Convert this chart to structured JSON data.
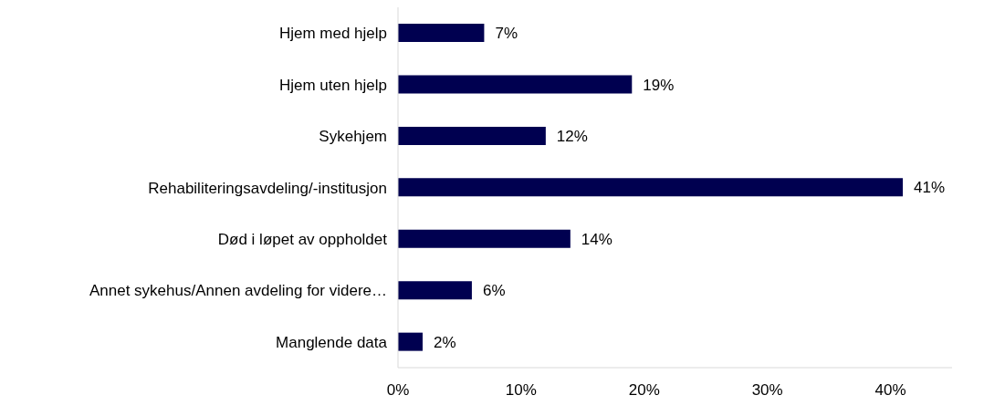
{
  "chart_data": {
    "type": "bar",
    "orientation": "horizontal",
    "categories": [
      "Hjem med hjelp",
      "Hjem uten hjelp",
      "Sykehjem",
      "Rehabiliteringsavdeling/-institusjon",
      "Død i løpet av oppholdet",
      "Annet sykehus/Annen avdeling for videre…",
      "Manglende data"
    ],
    "values": [
      7,
      19,
      12,
      41,
      14,
      6,
      2
    ],
    "value_labels": [
      "7%",
      "19%",
      "12%",
      "41%",
      "14%",
      "6%",
      "2%"
    ],
    "color": "#000050",
    "xlim": [
      0,
      45
    ],
    "xticks": [
      {
        "value": 0,
        "label": "0%"
      },
      {
        "value": 10,
        "label": "10%"
      },
      {
        "value": 20,
        "label": "20%"
      },
      {
        "value": 30,
        "label": "30%"
      },
      {
        "value": 40,
        "label": "40%"
      }
    ],
    "grid": false,
    "legend": false
  }
}
